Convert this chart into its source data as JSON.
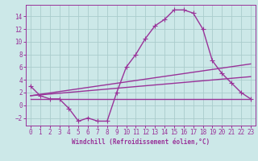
{
  "xlabel": "Windchill (Refroidissement éolien,°C)",
  "bg_color": "#cce8e8",
  "grid_color": "#aacccc",
  "line_color": "#993399",
  "xlim": [
    -0.5,
    23.5
  ],
  "ylim": [
    -3.2,
    15.8
  ],
  "xticks": [
    0,
    1,
    2,
    3,
    4,
    5,
    6,
    7,
    8,
    9,
    10,
    11,
    12,
    13,
    14,
    15,
    16,
    17,
    18,
    19,
    20,
    21,
    22,
    23
  ],
  "yticks": [
    -2,
    0,
    2,
    4,
    6,
    8,
    10,
    12,
    14
  ],
  "line1_x": [
    0,
    1,
    2,
    3,
    4,
    5,
    6,
    7,
    8,
    9,
    10,
    11,
    12,
    13,
    14,
    15,
    16,
    17,
    18,
    19,
    20,
    21,
    22,
    23
  ],
  "line1_y": [
    3.0,
    1.5,
    1.0,
    1.0,
    -0.5,
    -2.5,
    -2.0,
    -2.5,
    -2.5,
    2.0,
    6.0,
    8.0,
    10.5,
    12.5,
    13.5,
    15.0,
    15.0,
    14.5,
    12.0,
    7.0,
    5.0,
    3.5,
    2.0,
    1.0
  ],
  "line2_x": [
    0,
    23
  ],
  "line2_y": [
    1.0,
    1.0
  ],
  "line3_x": [
    0,
    23
  ],
  "line3_y": [
    1.5,
    6.5
  ],
  "line4_x": [
    0,
    23
  ],
  "line4_y": [
    1.5,
    4.5
  ],
  "marker": "+",
  "markersize": 4,
  "linewidth": 1.0,
  "tick_fontsize": 5.5,
  "xlabel_fontsize": 5.5
}
